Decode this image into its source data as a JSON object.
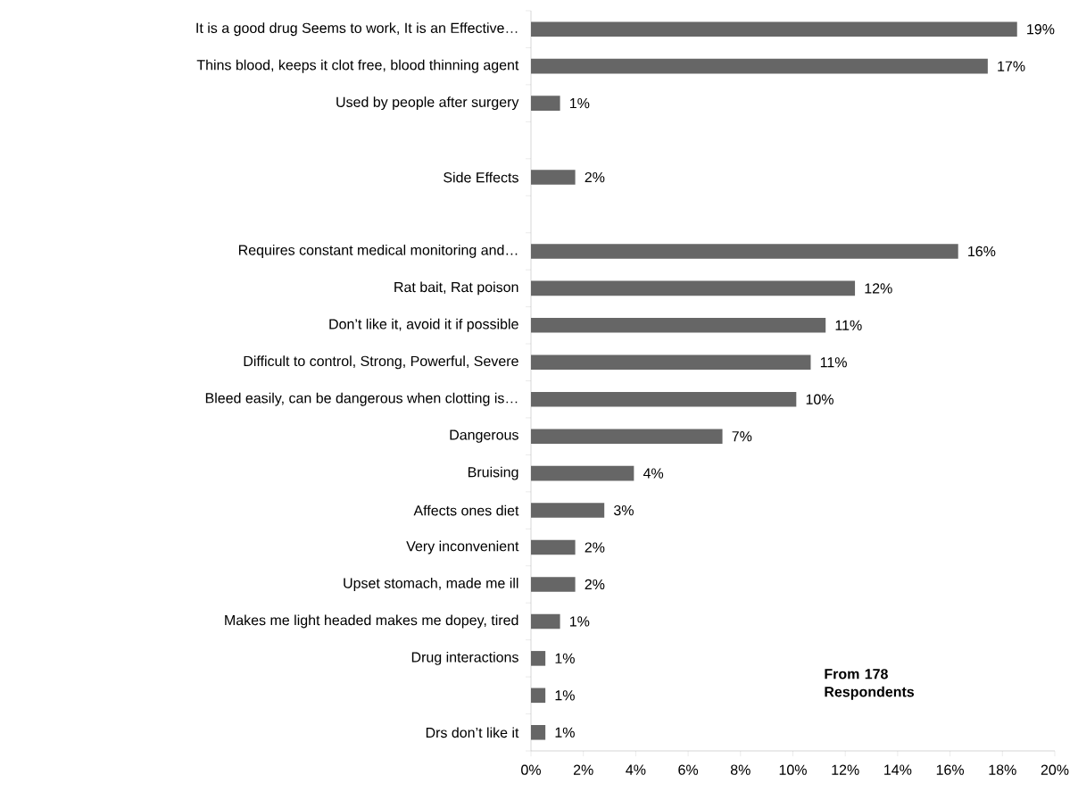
{
  "chart_data": {
    "type": "bar",
    "orientation": "horizontal",
    "color": "#666666",
    "categories": [
      "It is a good drug Seems to work, It is an Effective…",
      "Thins blood, keeps it clot free, blood thinning agent",
      "Used by people after surgery",
      null,
      "Side Effects",
      null,
      "Requires constant medical monitoring and…",
      "Rat bait, Rat poison",
      "Don’t like it, avoid it if possible",
      "Difficult to control, Strong, Powerful, Severe",
      "Bleed easily, can be dangerous when clotting is…",
      "Dangerous",
      "Bruising",
      "Affects ones diet",
      "Very inconvenient",
      "Upset stomach, made me ill",
      "Makes me light headed makes me dopey, tired",
      "Drug interactions",
      null,
      "Drs don’t like it"
    ],
    "values": [
      18.56,
      17.44,
      1.11,
      null,
      1.69,
      null,
      16.31,
      12.37,
      11.25,
      10.68,
      10.13,
      7.31,
      3.93,
      2.8,
      1.69,
      1.69,
      1.11,
      0.55,
      0.55,
      0.55
    ],
    "value_labels": [
      "19%",
      "17%",
      "1%",
      null,
      "2%",
      null,
      "16%",
      "12%",
      "11%",
      "11%",
      "10%",
      "7%",
      "4%",
      "3%",
      "2%",
      "2%",
      "1%",
      "1%",
      "1%",
      "1%"
    ],
    "xlim": [
      0,
      20
    ],
    "xticks": [
      {
        "value": 0,
        "label": "0%"
      },
      {
        "value": 2,
        "label": "2%"
      },
      {
        "value": 4,
        "label": "4%"
      },
      {
        "value": 6,
        "label": "6%"
      },
      {
        "value": 8,
        "label": "8%"
      },
      {
        "value": 10,
        "label": "10%"
      },
      {
        "value": 12,
        "label": "12%"
      },
      {
        "value": 14,
        "label": "14%"
      },
      {
        "value": 16,
        "label": "16%"
      },
      {
        "value": 18,
        "label": "18%"
      },
      {
        "value": 20,
        "label": "20%"
      }
    ],
    "annotations": [
      "**From 178 Respondents**"
    ]
  }
}
